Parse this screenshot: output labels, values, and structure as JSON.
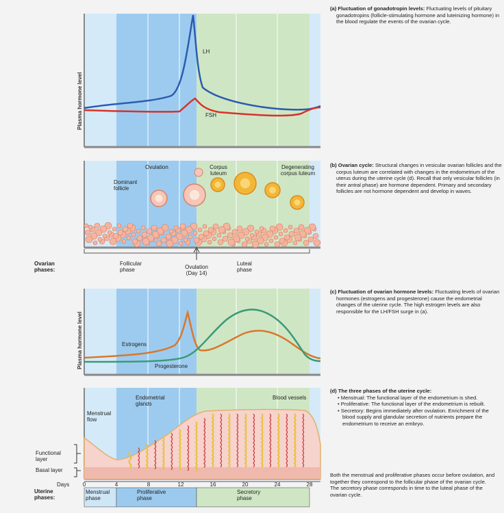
{
  "panel_a": {
    "y_label": "Plasma hormone level",
    "lh": "LH",
    "fsh": "FSH"
  },
  "panel_b": {
    "ovulation": "Ovulation",
    "corpus_luteum": "Corpus luteum",
    "degenerating": "Degenerating corpus luteum",
    "dominant": "Dominant follicle"
  },
  "ovarian_phases": {
    "label": "Ovarian phases:",
    "follicular": "Follicular phase",
    "ovulation": "Ovulation (Day 14)",
    "luteal": "Luteal phase"
  },
  "panel_c": {
    "y_label": "Plasma hormone level",
    "estrogens": "Estrogens",
    "progesterone": "Progesterone"
  },
  "panel_d": {
    "glands": "Endometrial glands",
    "vessels": "Blood vessels",
    "flow": "Menstrual flow",
    "functional": "Functional layer",
    "basal": "Basal layer"
  },
  "days_axis": {
    "label": "Days",
    "ticks": [
      0,
      4,
      8,
      12,
      16,
      20,
      24,
      28
    ]
  },
  "uterine_phases": {
    "label": "Uterine phases:",
    "menstrual": "Menstrual phase",
    "proliferative": "Proliferative phase",
    "secretory": "Secretory phase"
  },
  "captions": {
    "a": {
      "heading": "(a) Fluctuation of gonadotropin levels:",
      "body": "Fluctuating levels of pituitary gonadotropins (follicle-stimulating hormone and luteinizing hormone) in the blood regulate the events of the ovarian cycle."
    },
    "b": {
      "heading": "(b) Ovarian cycle:",
      "body": "Structural changes in vesicular ovarian follicles and the corpus luteum are correlated with changes in the endometrium of the uterus during the uterine cycle (d). Recall that only vesicular follicles (in their antral phase) are hormone dependent. Primary and secondary follicles are not hormone dependent and develop in waves."
    },
    "c": {
      "heading": "(c) Fluctuation of ovarian hormone levels:",
      "body": "Fluctuating levels of ovarian hormones (estrogens and progesterone) cause the endometrial changes of the uterine cycle. The high estrogen levels are also responsible for the LH/FSH surge in (a)."
    },
    "d": {
      "heading": "(d) The three phases of the uterine cycle:",
      "bullets": [
        "Menstrual: The functional layer of the endometrium is shed.",
        "Proliferative: The functional layer of the endometrium is rebuilt.",
        "Secretory: Begins immediately after ovulation. Enrichment of the blood supply and glandular secretion of nutrients prepare the endometrium to receive an embryo."
      ]
    },
    "summary": "Both the menstrual and proliferative phases occur before ovulation, and together they correspond to the follicular phase of the ovarian cycle. The secretory phase corresponds in time to the luteal phase of the ovarian cycle."
  }
}
